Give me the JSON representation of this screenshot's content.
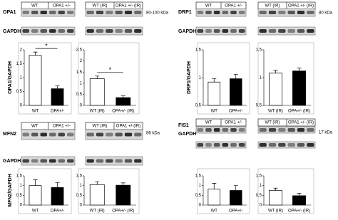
{
  "chart_data": [
    {
      "type": "bar",
      "ylabel": "OPA1/GAPDH",
      "categories": [
        "WT",
        "OPA+/-"
      ],
      "series": [
        {
          "values": [
            1.8,
            0.6
          ],
          "errors": [
            0.12,
            0.1
          ],
          "colors": [
            "#ffffff",
            "#000000"
          ]
        }
      ],
      "ylim": [
        0,
        2
      ],
      "yticks": [
        0,
        0.5,
        1,
        1.5,
        2
      ],
      "annotation": "*"
    },
    {
      "type": "bar",
      "categories": [
        "WT (IR)",
        "OPA+/- (IR)"
      ],
      "series": [
        {
          "values": [
            1.2,
            0.35
          ],
          "errors": [
            0.12,
            0.08
          ],
          "colors": [
            "#ffffff",
            "#000000"
          ]
        }
      ],
      "ylim": [
        0,
        2.5
      ],
      "yticks": [
        0,
        0.5,
        1,
        1.5,
        2,
        2.5
      ],
      "annotation": "*"
    },
    {
      "type": "bar",
      "ylabel": "DRP1/GAPDH",
      "categories": [
        "WT",
        "OPA+/-"
      ],
      "series": [
        {
          "values": [
            0.92,
            0.98
          ],
          "errors": [
            0.06,
            0.08
          ],
          "colors": [
            "#ffffff",
            "#000000"
          ]
        }
      ],
      "ylim": [
        0.5,
        1.5
      ],
      "yticks": [
        0.5,
        1,
        1.5
      ]
    },
    {
      "type": "bar",
      "categories": [
        "WT (IR)",
        "OPA+/- (IR)"
      ],
      "series": [
        {
          "values": [
            1.08,
            1.12
          ],
          "errors": [
            0.05,
            0.05
          ],
          "colors": [
            "#ffffff",
            "#000000"
          ]
        }
      ],
      "ylim": [
        0.5,
        1.5
      ],
      "yticks": [
        0.5,
        1,
        1.5
      ]
    },
    {
      "type": "bar",
      "ylabel": "MFN2/GAPDH",
      "categories": [
        "WT",
        "OPA+/-"
      ],
      "series": [
        {
          "values": [
            1.0,
            0.9
          ],
          "errors": [
            0.3,
            0.25
          ],
          "colors": [
            "#ffffff",
            "#000000"
          ]
        }
      ],
      "ylim": [
        0,
        1.5
      ],
      "yticks": [
        0,
        0.5,
        1,
        1.5
      ]
    },
    {
      "type": "bar",
      "categories": [
        "WT (IR)",
        "OPA+/- (IR)"
      ],
      "series": [
        {
          "values": [
            1.05,
            1.02
          ],
          "errors": [
            0.15,
            0.12
          ],
          "colors": [
            "#ffffff",
            "#000000"
          ]
        }
      ],
      "ylim": [
        0,
        1.5
      ],
      "yticks": [
        0,
        0.5,
        1,
        1.5
      ]
    },
    {
      "type": "bar",
      "categories": [
        "WT",
        "OPA+/-"
      ],
      "series": [
        {
          "values": [
            0.82,
            0.75
          ],
          "errors": [
            0.3,
            0.25
          ],
          "colors": [
            "#ffffff",
            "#000000"
          ]
        }
      ],
      "ylim": [
        0,
        1.5
      ],
      "yticks": [
        0,
        0.5,
        1,
        1.5
      ]
    },
    {
      "type": "bar",
      "categories": [
        "WT (IR)",
        "OPA+/- (IR)"
      ],
      "series": [
        {
          "values": [
            0.75,
            0.48
          ],
          "errors": [
            0.12,
            0.12
          ],
          "colors": [
            "#ffffff",
            "#000000"
          ]
        }
      ],
      "ylim": [
        0,
        1.5
      ],
      "yticks": [
        0,
        0.5,
        1,
        1.5
      ]
    }
  ],
  "blots": [
    {
      "protein": "OPA1",
      "loading": "GAPDH",
      "groups": [
        [
          "WT",
          "OPA1 +/-"
        ],
        [
          "WT (IR)",
          "OPA1 +/- (IR)"
        ]
      ],
      "size": "80-100 kDa"
    },
    {
      "protein": "DRP1",
      "loading": "GAPDH",
      "groups": [
        [
          "WT",
          "OPA1 +/-"
        ],
        [
          "WT (IR)",
          "OPA1 +/- (IR)"
        ]
      ],
      "size": "80 kDa"
    },
    {
      "protein": "MFN2",
      "loading": "GAPDH",
      "groups": [
        [
          "WT",
          "OPA1 +/-"
        ],
        [
          "WT (IR)",
          "OPA1 +/-(IR)"
        ]
      ],
      "size": "86 kDa"
    },
    {
      "protein": "FIS1",
      "loading": "GAPDH",
      "groups": [
        [
          "WT",
          "OPA1 +/-"
        ],
        [
          "WT (IR)",
          "OPA1 +/- (IR)"
        ]
      ],
      "size": "17 kDa"
    }
  ]
}
